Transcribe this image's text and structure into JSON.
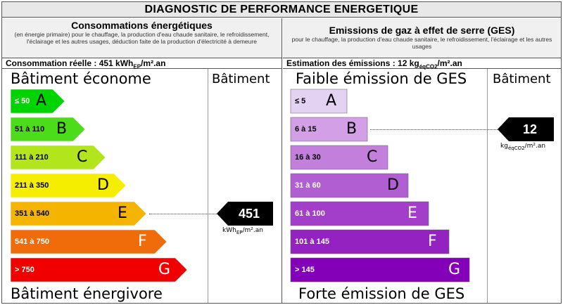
{
  "title": "DIAGNOSTIC DE PERFORMANCE ENERGETIQUE",
  "energy": {
    "title": "Consommations énergétiques",
    "subtitle": "(en énergie primaire) pour le chauffage, la production d'eau chaude sanitaire, le refroidissement, l'éclairage et les autres usages, déduction faite de la production d'électricité à demeure",
    "value_prefix": "Consommation réelle : 451 kWh",
    "value_sub": "EP",
    "value_suffix": "/m².an",
    "top_label": "Bâtiment économe",
    "bottom_label": "Bâtiment énergivore",
    "column_label": "Bâtiment",
    "value": "451",
    "unit_prefix": "kWh",
    "unit_sub": "EP",
    "unit_suffix": "/m².an",
    "active_class": "E",
    "classes": [
      {
        "range": "≤ 50",
        "letter": "A",
        "color": "#00d400"
      },
      {
        "range": "51 à 110",
        "letter": "B",
        "color": "#4ddc1a"
      },
      {
        "range": "111 à 210",
        "letter": "C",
        "color": "#b3e51c"
      },
      {
        "range": "211 à 350",
        "letter": "D",
        "color": "#f5ee00"
      },
      {
        "range": "351 à 540",
        "letter": "E",
        "color": "#f5b400"
      },
      {
        "range": "541 à 750",
        "letter": "F",
        "color": "#f06b0a"
      },
      {
        "range": "> 750",
        "letter": "G",
        "color": "#f00000"
      }
    ]
  },
  "ges": {
    "title": "Emissions de gaz à effet de serre (GES)",
    "subtitle": "pour le chauffage, la production d'eau chaude sanitaire, le refroidissement, l'éclairage et les autres usages",
    "value_prefix": "Estimation des émissions : 12 kg",
    "value_sub": "éqCO2",
    "value_suffix": "/m².an",
    "top_label": "Faible émission de GES",
    "bottom_label": "Forte émission de GES",
    "column_label": "Bâtiment",
    "value": "12",
    "unit_prefix": "kg",
    "unit_sub": "éqCO2",
    "unit_suffix": "/m².an",
    "active_class": "B",
    "classes": [
      {
        "range": "≤ 5",
        "letter": "A",
        "color": "#e4d2f2"
      },
      {
        "range": "6 à 15",
        "letter": "B",
        "color": "#d39fe6"
      },
      {
        "range": "16 à 30",
        "letter": "C",
        "color": "#c27fdc"
      },
      {
        "range": "31 à 60",
        "letter": "D",
        "color": "#b25ed3"
      },
      {
        "range": "61 à 100",
        "letter": "E",
        "color": "#a23ec9"
      },
      {
        "range": "101 à 145",
        "letter": "F",
        "color": "#9422c0"
      },
      {
        "range": "> 145",
        "letter": "G",
        "color": "#8400b8"
      }
    ]
  }
}
